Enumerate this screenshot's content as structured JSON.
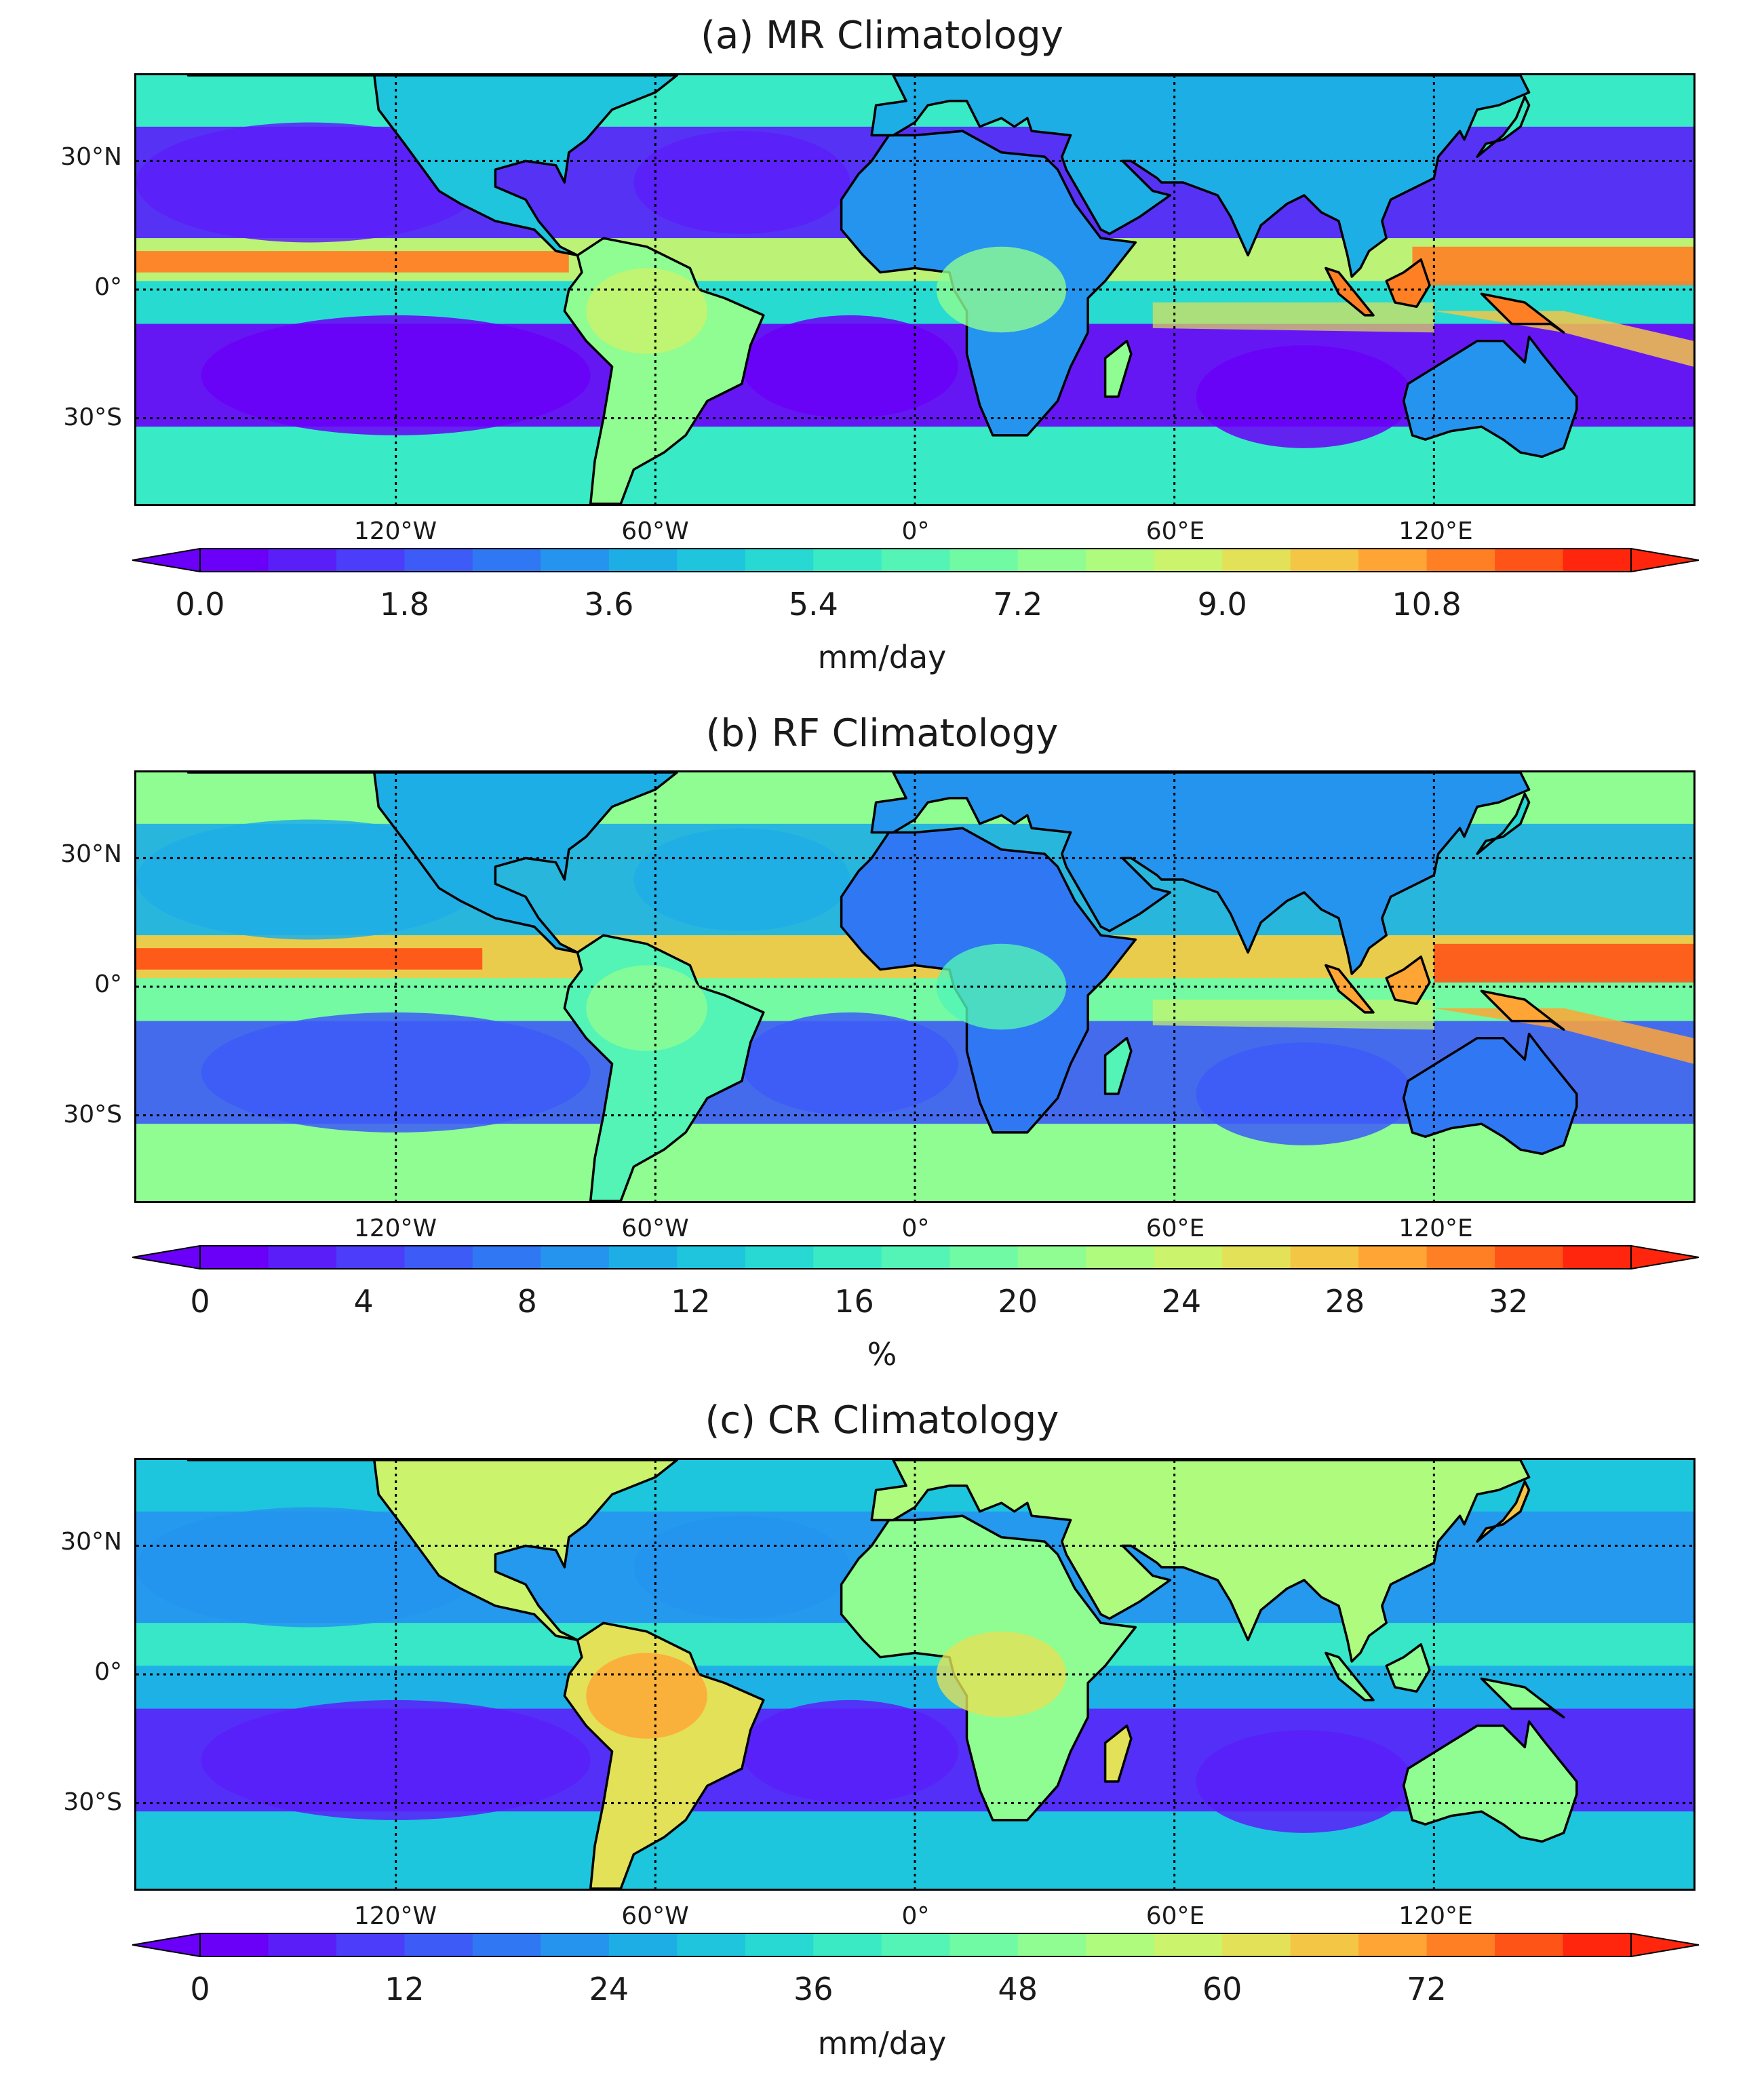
{
  "colors": [
    "#6a00f7",
    "#5a1ef9",
    "#4b3df9",
    "#3d5bf7",
    "#3078f3",
    "#2594ee",
    "#1eaee6",
    "#1ec5dd",
    "#27d9d2",
    "#3aeac5",
    "#53f4b6",
    "#70faa4",
    "#8ffd91",
    "#aefb7e",
    "#cbf36b",
    "#e3e158",
    "#f4c646",
    "#ffa535",
    "#ff7f25",
    "#ff5418",
    "#ff260d"
  ],
  "ocean_color": "#3aa6ec",
  "land_outline_color": "#000000",
  "chart_data": [
    {
      "type": "heatmap",
      "panel_id": "a",
      "title": "(a) MR Climatology",
      "unit": "mm/day",
      "colorbar_ticks": [
        "0.0",
        "1.8",
        "3.6",
        "5.4",
        "7.2",
        "9.0",
        "10.8"
      ],
      "colorbar_range": [
        0,
        12.6
      ],
      "colorbar_extend": "both",
      "lat_labels": [
        "30°N",
        "0°",
        "30°S"
      ],
      "lon_labels": [
        "120°W",
        "60°W",
        "0°",
        "60°E",
        "120°E"
      ],
      "xlim_deg": [
        -180,
        180
      ],
      "ylim_deg": [
        -50,
        50
      ],
      "features": {
        "itcz_max": 11.5,
        "subtropical_dry": 0.3,
        "midlatitude": 4.0,
        "maritime_continent": 11.0
      }
    },
    {
      "type": "heatmap",
      "panel_id": "b",
      "title": "(b) RF Climatology",
      "unit": "%",
      "colorbar_ticks": [
        "0",
        "4",
        "8",
        "12",
        "16",
        "20",
        "24",
        "28",
        "32"
      ],
      "colorbar_range": [
        0,
        35
      ],
      "colorbar_extend": "both",
      "lat_labels": [
        "30°N",
        "0°",
        "30°S"
      ],
      "lon_labels": [
        "120°W",
        "60°W",
        "0°",
        "60°E",
        "120°E"
      ],
      "xlim_deg": [
        -180,
        180
      ],
      "ylim_deg": [
        -50,
        50
      ],
      "features": {
        "itcz_max": 32,
        "subtropical_dry": 2,
        "midlatitude": 14,
        "maritime_continent": 30
      }
    },
    {
      "type": "heatmap",
      "panel_id": "c",
      "title": "(c) CR Climatology",
      "unit": "mm/day",
      "colorbar_ticks": [
        "0",
        "12",
        "24",
        "36",
        "48",
        "60",
        "72"
      ],
      "colorbar_range": [
        0,
        84
      ],
      "colorbar_extend": "both",
      "lat_labels": [
        "30°N",
        "0°",
        "30°S"
      ],
      "lon_labels": [
        "120°W",
        "60°W",
        "0°",
        "60°E",
        "120°E"
      ],
      "xlim_deg": [
        -180,
        180
      ],
      "ylim_deg": [
        -50,
        50
      ],
      "features": {
        "itcz_max": 45,
        "subtropical_dry": 10,
        "midlatitude": 30,
        "land_hotspots": 70
      }
    }
  ]
}
